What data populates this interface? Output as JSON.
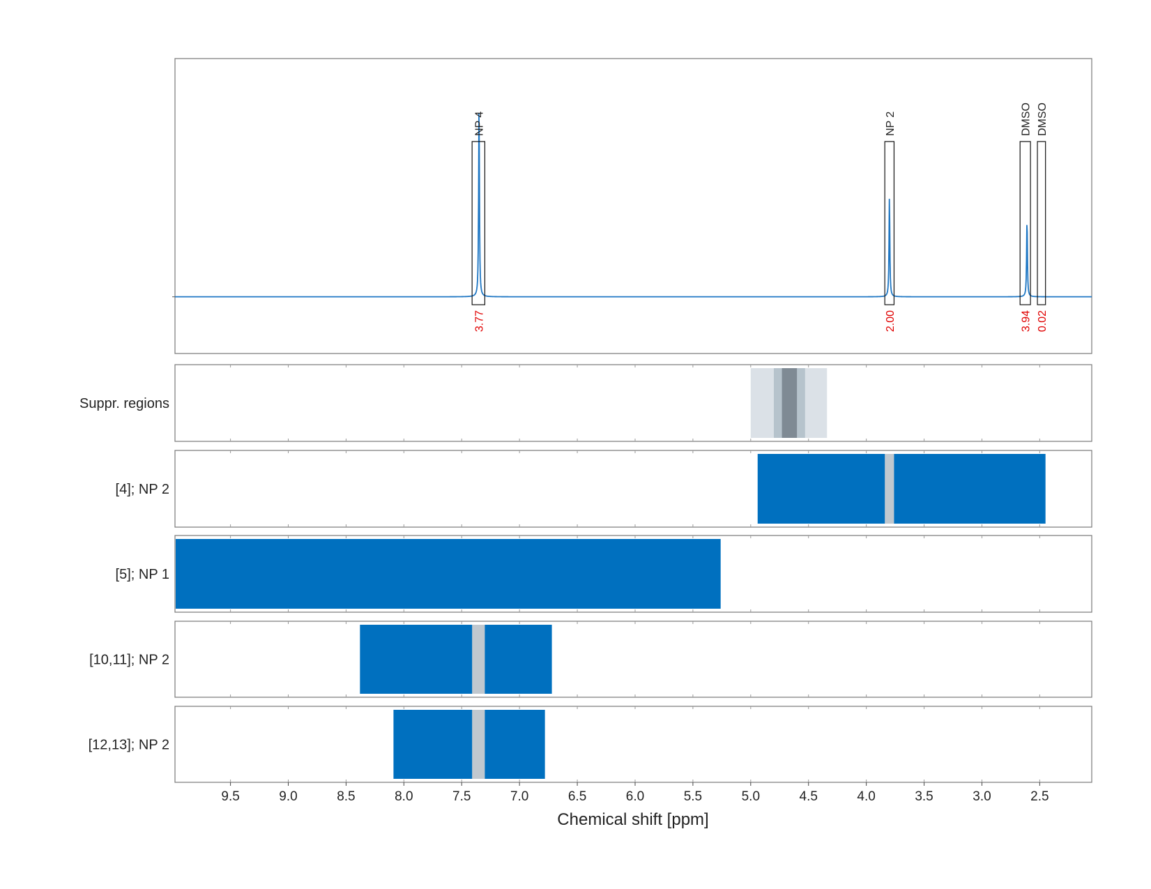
{
  "chart_data": {
    "type": "nmr-spectrum-with-region-bars",
    "xlabel": "Chemical shift [ppm]",
    "x_reversed": true,
    "xlim": [
      9.98,
      2.05
    ],
    "x_ticks": [
      9.5,
      9.0,
      8.5,
      8.0,
      7.5,
      7.0,
      6.5,
      6.0,
      5.5,
      5.0,
      4.5,
      4.0,
      3.5,
      3.0,
      2.5,
      2.0
    ],
    "x_tick_labels": [
      "9.5",
      "9.0",
      "8.5",
      "8.0",
      "7.5",
      "7.0",
      "6.5",
      "6.0",
      "5.5",
      "5.0",
      "4.5",
      "4.0",
      "3.5",
      "3.0",
      "2.5",
      "2.0"
    ],
    "grid": "vertical dashed",
    "spectrum": {
      "color": "#1f77c4",
      "baseline": 0,
      "ylim": [
        -0.25,
        1.05
      ],
      "peaks": [
        {
          "ppm": 7.35,
          "height": 0.85
        },
        {
          "ppm": 3.8,
          "height": 0.445
        },
        {
          "ppm": 2.61,
          "height": 0.345
        }
      ]
    },
    "annotations": [
      {
        "label": "NP 4",
        "range": [
          7.41,
          7.3
        ],
        "integral": "3.77"
      },
      {
        "label": "NP 2",
        "range": [
          3.84,
          3.76
        ],
        "integral": "2.00"
      },
      {
        "label": "DMSO",
        "range": [
          2.67,
          2.58
        ],
        "integral": "3.94"
      },
      {
        "label": "DMSO",
        "range": [
          2.52,
          2.45
        ],
        "integral": "0.02"
      }
    ],
    "suppressed_regions": [
      {
        "range": [
          5.0,
          4.34
        ],
        "color": "#dbe1e7"
      },
      {
        "range": [
          4.8,
          4.53
        ],
        "color": "#b6c3cc"
      },
      {
        "range": [
          4.73,
          4.6
        ],
        "color": "#7f8a94"
      }
    ],
    "rows": [
      {
        "label": "Suppr. regions",
        "type": "suppressed"
      },
      {
        "label": "[4]; NP 2",
        "bars": [
          [
            4.94,
            2.45
          ]
        ],
        "gaps": [
          [
            3.84,
            3.76
          ]
        ]
      },
      {
        "label": "[5]; NP 1",
        "bars": [
          [
            9.98,
            5.26
          ]
        ],
        "gaps": []
      },
      {
        "label": "[10,11]; NP 2",
        "bars": [
          [
            8.38,
            6.72
          ]
        ],
        "gaps": [
          [
            7.41,
            7.3
          ]
        ]
      },
      {
        "label": "[12,13]; NP 2",
        "bars": [
          [
            8.09,
            6.78
          ]
        ],
        "gaps": [
          [
            7.41,
            7.3
          ]
        ]
      }
    ],
    "bar_color": "#0070bf",
    "gap_color": "#c0c8cf"
  }
}
